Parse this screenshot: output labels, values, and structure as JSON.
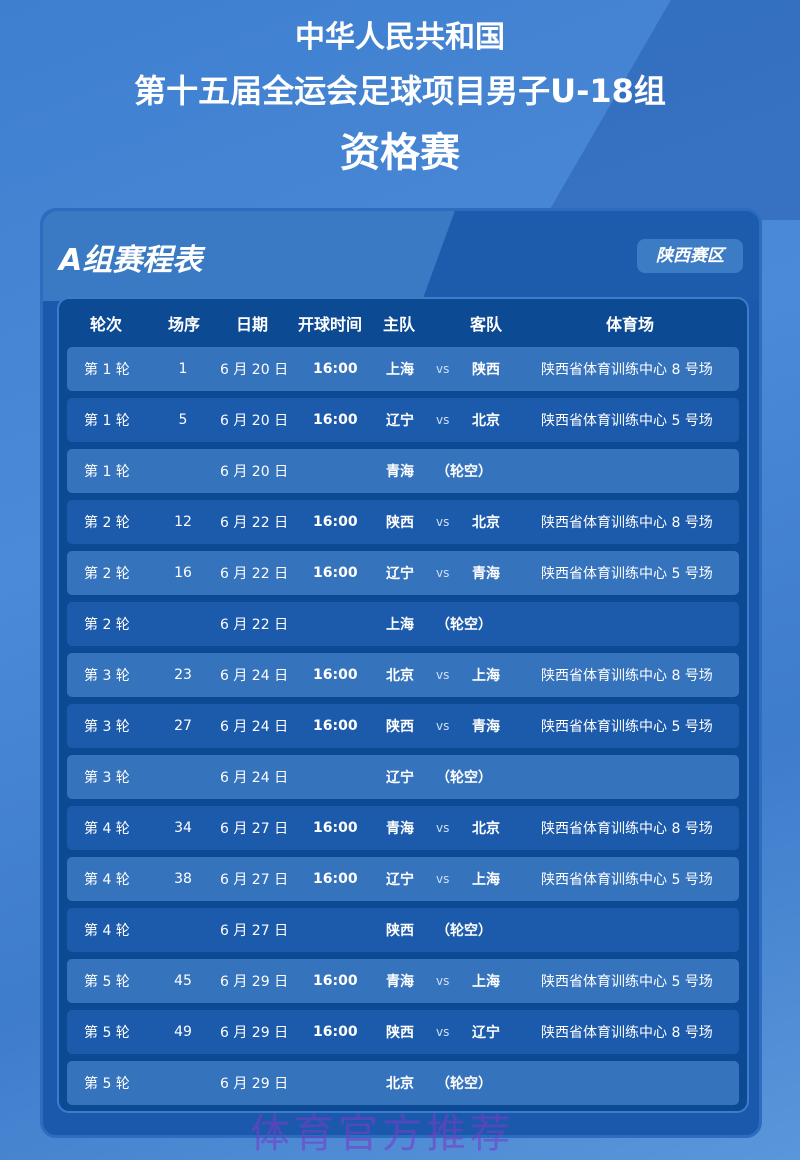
{
  "header": {
    "line1": "中华人民共和国",
    "line2": "第十五届全运会足球项目男子U-18组",
    "line3": "资格赛"
  },
  "card": {
    "group_title": "A组赛程表",
    "region": "陕西赛区"
  },
  "columns": [
    "轮次",
    "场序",
    "日期",
    "开球时间",
    "主队",
    "客队",
    "体育场"
  ],
  "rows": [
    {
      "round": "第 1 轮",
      "no": "1",
      "date": "6 月 20 日",
      "time": "16:00",
      "home": "上海",
      "vs": "vs",
      "away": "陕西",
      "venue": "陕西省体育训练中心 8 号场"
    },
    {
      "round": "第 1 轮",
      "no": "5",
      "date": "6 月 20 日",
      "time": "16:00",
      "home": "辽宁",
      "vs": "vs",
      "away": "北京",
      "venue": "陕西省体育训练中心 5 号场"
    },
    {
      "round": "第 1 轮",
      "no": "",
      "date": "6 月 20 日",
      "time": "",
      "home": "青海",
      "vs": "（轮空）",
      "away": "",
      "venue": ""
    },
    {
      "round": "第 2 轮",
      "no": "12",
      "date": "6 月 22 日",
      "time": "16:00",
      "home": "陕西",
      "vs": "vs",
      "away": "北京",
      "venue": "陕西省体育训练中心 8 号场"
    },
    {
      "round": "第 2 轮",
      "no": "16",
      "date": "6 月 22 日",
      "time": "16:00",
      "home": "辽宁",
      "vs": "vs",
      "away": "青海",
      "venue": "陕西省体育训练中心 5 号场"
    },
    {
      "round": "第 2 轮",
      "no": "",
      "date": "6 月 22 日",
      "time": "",
      "home": "上海",
      "vs": "（轮空）",
      "away": "",
      "venue": ""
    },
    {
      "round": "第 3 轮",
      "no": "23",
      "date": "6 月 24 日",
      "time": "16:00",
      "home": "北京",
      "vs": "vs",
      "away": "上海",
      "venue": "陕西省体育训练中心 8 号场"
    },
    {
      "round": "第 3 轮",
      "no": "27",
      "date": "6 月 24 日",
      "time": "16:00",
      "home": "陕西",
      "vs": "vs",
      "away": "青海",
      "venue": "陕西省体育训练中心 5 号场"
    },
    {
      "round": "第 3 轮",
      "no": "",
      "date": "6 月 24 日",
      "time": "",
      "home": "辽宁",
      "vs": "（轮空）",
      "away": "",
      "venue": ""
    },
    {
      "round": "第 4 轮",
      "no": "34",
      "date": "6 月 27 日",
      "time": "16:00",
      "home": "青海",
      "vs": "vs",
      "away": "北京",
      "venue": "陕西省体育训练中心 8 号场"
    },
    {
      "round": "第 4 轮",
      "no": "38",
      "date": "6 月 27 日",
      "time": "16:00",
      "home": "辽宁",
      "vs": "vs",
      "away": "上海",
      "venue": "陕西省体育训练中心 5 号场"
    },
    {
      "round": "第 4 轮",
      "no": "",
      "date": "6 月 27 日",
      "time": "",
      "home": "陕西",
      "vs": "（轮空）",
      "away": "",
      "venue": ""
    },
    {
      "round": "第 5 轮",
      "no": "45",
      "date": "6 月 29 日",
      "time": "16:00",
      "home": "青海",
      "vs": "vs",
      "away": "上海",
      "venue": "陕西省体育训练中心 5 号场"
    },
    {
      "round": "第 5 轮",
      "no": "49",
      "date": "6 月 29 日",
      "time": "16:00",
      "home": "陕西",
      "vs": "vs",
      "away": "辽宁",
      "venue": "陕西省体育训练中心 8 号场"
    },
    {
      "round": "第 5 轮",
      "no": "",
      "date": "6 月 29 日",
      "time": "",
      "home": "北京",
      "vs": "（轮空）",
      "away": "",
      "venue": ""
    }
  ],
  "watermark": "体育官方推荐"
}
